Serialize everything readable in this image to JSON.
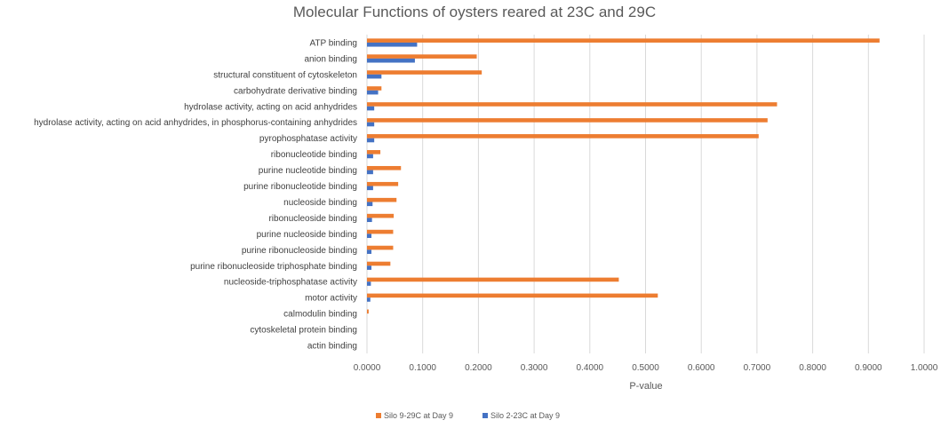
{
  "chart_data": {
    "type": "bar",
    "orientation": "horizontal",
    "title": "Molecular Functions of oysters reared at 23C and 29C",
    "xlabel": "P-value",
    "ylabel": "",
    "xlim": [
      0,
      1
    ],
    "xticks": [
      "0.0000",
      "0.1000",
      "0.2000",
      "0.3000",
      "0.4000",
      "0.5000",
      "0.6000",
      "0.7000",
      "0.8000",
      "0.9000",
      "1.0000"
    ],
    "grid": true,
    "legend_position": "bottom",
    "categories": [
      "ATP binding",
      "anion binding",
      "structural constituent of cytoskeleton",
      "carbohydrate derivative binding",
      "hydrolase activity, acting on acid anhydrides",
      "hydrolase activity, acting on acid anhydrides, in phosphorus-containing anhydrides",
      "pyrophosphatase activity",
      "ribonucleotide binding",
      "purine nucleotide binding",
      "purine ribonucleotide binding",
      "nucleoside binding",
      "ribonucleoside binding",
      "purine nucleoside binding",
      "purine ribonucleoside binding",
      "purine ribonucleoside triphosphate binding",
      "nucleoside-triphosphatase activity",
      "motor activity",
      "calmodulin binding",
      "cytoskeletal protein binding",
      "actin binding"
    ],
    "series": [
      {
        "name": "Silo 9-29C at Day 9",
        "color": "#ED7D31",
        "values": [
          0.92,
          0.197,
          0.206,
          0.026,
          0.736,
          0.719,
          0.703,
          0.024,
          0.061,
          0.056,
          0.053,
          0.048,
          0.047,
          0.047,
          0.042,
          0.452,
          0.522,
          0.003,
          0.0,
          0.0
        ]
      },
      {
        "name": "Silo 2-23C at Day 9",
        "color": "#4472C4",
        "values": [
          0.09,
          0.086,
          0.026,
          0.02,
          0.013,
          0.013,
          0.013,
          0.011,
          0.011,
          0.011,
          0.01,
          0.009,
          0.008,
          0.008,
          0.008,
          0.007,
          0.006,
          0.0,
          0.0,
          0.0
        ]
      }
    ]
  }
}
